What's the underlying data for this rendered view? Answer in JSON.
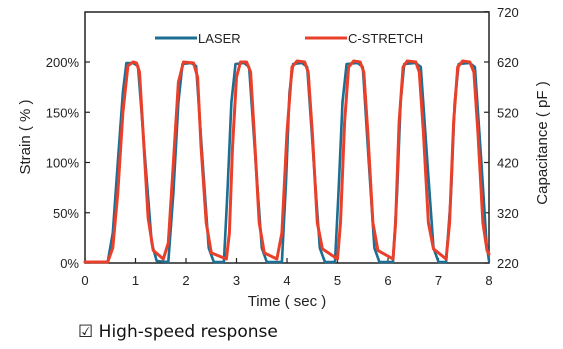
{
  "caption": {
    "checkbox": "☑",
    "text": "High-speed response"
  },
  "chart_data": {
    "type": "line",
    "title": "",
    "xlabel": "Time ( sec )",
    "ylabel": "Strain ( % )",
    "y2label": "Capacitance ( pF )",
    "xlim": [
      0,
      8
    ],
    "ylim": [
      0,
      200
    ],
    "y2lim": [
      220,
      620
    ],
    "xticks": [
      "0",
      "1",
      "2",
      "3",
      "4",
      "5",
      "6",
      "7",
      "8"
    ],
    "yticks": [
      "0%",
      "50%",
      "100%",
      "150%",
      "200%"
    ],
    "y2ticks": [
      "220",
      "320",
      "420",
      "520",
      "620",
      "720"
    ],
    "y2tick_values": [
      220,
      320,
      420,
      520,
      620,
      720
    ],
    "grid": false,
    "legend_position": "top-right",
    "series": [
      {
        "name": "LASER",
        "color": "#1c6e93",
        "axis": "left",
        "points": [
          [
            0,
            1
          ],
          [
            0.45,
            1
          ],
          [
            0.55,
            30
          ],
          [
            0.65,
            100
          ],
          [
            0.75,
            170
          ],
          [
            0.82,
            199
          ],
          [
            0.95,
            199
          ],
          [
            1.05,
            196
          ],
          [
            1.18,
            110
          ],
          [
            1.32,
            20
          ],
          [
            1.42,
            2
          ],
          [
            1.65,
            1
          ],
          [
            1.75,
            70
          ],
          [
            1.85,
            160
          ],
          [
            1.93,
            198
          ],
          [
            2.1,
            199
          ],
          [
            2.2,
            196
          ],
          [
            2.33,
            100
          ],
          [
            2.45,
            15
          ],
          [
            2.55,
            1
          ],
          [
            2.75,
            1
          ],
          [
            2.82,
            70
          ],
          [
            2.9,
            160
          ],
          [
            2.98,
            198
          ],
          [
            3.15,
            199
          ],
          [
            3.25,
            195
          ],
          [
            3.38,
            100
          ],
          [
            3.5,
            15
          ],
          [
            3.6,
            1
          ],
          [
            3.9,
            1
          ],
          [
            3.98,
            80
          ],
          [
            4.05,
            170
          ],
          [
            4.12,
            198
          ],
          [
            4.3,
            199
          ],
          [
            4.4,
            195
          ],
          [
            4.53,
            100
          ],
          [
            4.65,
            15
          ],
          [
            4.75,
            1
          ],
          [
            4.95,
            1
          ],
          [
            5.02,
            70
          ],
          [
            5.1,
            160
          ],
          [
            5.18,
            198
          ],
          [
            5.4,
            199
          ],
          [
            5.5,
            195
          ],
          [
            5.62,
            100
          ],
          [
            5.73,
            15
          ],
          [
            5.83,
            1
          ],
          [
            6.1,
            1
          ],
          [
            6.18,
            70
          ],
          [
            6.25,
            160
          ],
          [
            6.32,
            198
          ],
          [
            6.55,
            199
          ],
          [
            6.65,
            195
          ],
          [
            6.78,
            100
          ],
          [
            6.9,
            15
          ],
          [
            7.0,
            1
          ],
          [
            7.15,
            1
          ],
          [
            7.25,
            70
          ],
          [
            7.32,
            160
          ],
          [
            7.4,
            198
          ],
          [
            7.62,
            199
          ],
          [
            7.72,
            195
          ],
          [
            7.85,
            100
          ],
          [
            7.95,
            20
          ],
          [
            8.0,
            2
          ]
        ]
      },
      {
        "name": "C-STRETCH",
        "color": "#e8402a",
        "axis": "right",
        "points": [
          [
            0,
            222
          ],
          [
            0.45,
            222
          ],
          [
            0.55,
            250
          ],
          [
            0.65,
            360
          ],
          [
            0.75,
            520
          ],
          [
            0.85,
            612
          ],
          [
            0.95,
            620
          ],
          [
            1.02,
            618
          ],
          [
            1.08,
            600
          ],
          [
            1.15,
            480
          ],
          [
            1.25,
            310
          ],
          [
            1.35,
            245
          ],
          [
            1.55,
            228
          ],
          [
            1.65,
            260
          ],
          [
            1.75,
            420
          ],
          [
            1.85,
            580
          ],
          [
            1.95,
            620
          ],
          [
            2.15,
            618
          ],
          [
            2.23,
            590
          ],
          [
            2.3,
            450
          ],
          [
            2.4,
            300
          ],
          [
            2.5,
            240
          ],
          [
            2.8,
            228
          ],
          [
            2.86,
            280
          ],
          [
            2.92,
            450
          ],
          [
            3.0,
            590
          ],
          [
            3.08,
            620
          ],
          [
            3.2,
            620
          ],
          [
            3.28,
            600
          ],
          [
            3.35,
            480
          ],
          [
            3.45,
            300
          ],
          [
            3.55,
            240
          ],
          [
            3.8,
            228
          ],
          [
            3.9,
            280
          ],
          [
            4.0,
            480
          ],
          [
            4.1,
            610
          ],
          [
            4.2,
            622
          ],
          [
            4.35,
            620
          ],
          [
            4.42,
            600
          ],
          [
            4.5,
            480
          ],
          [
            4.6,
            300
          ],
          [
            4.7,
            248
          ],
          [
            5.0,
            228
          ],
          [
            5.06,
            300
          ],
          [
            5.14,
            500
          ],
          [
            5.22,
            610
          ],
          [
            5.32,
            622
          ],
          [
            5.45,
            620
          ],
          [
            5.52,
            600
          ],
          [
            5.6,
            480
          ],
          [
            5.7,
            300
          ],
          [
            5.8,
            245
          ],
          [
            6.1,
            228
          ],
          [
            6.15,
            300
          ],
          [
            6.22,
            500
          ],
          [
            6.3,
            610
          ],
          [
            6.38,
            622
          ],
          [
            6.55,
            620
          ],
          [
            6.62,
            600
          ],
          [
            6.7,
            480
          ],
          [
            6.8,
            300
          ],
          [
            6.9,
            248
          ],
          [
            7.15,
            228
          ],
          [
            7.22,
            300
          ],
          [
            7.3,
            500
          ],
          [
            7.38,
            610
          ],
          [
            7.48,
            622
          ],
          [
            7.62,
            620
          ],
          [
            7.7,
            600
          ],
          [
            7.78,
            480
          ],
          [
            7.88,
            300
          ],
          [
            7.96,
            245
          ],
          [
            8.0,
            238
          ]
        ]
      }
    ]
  }
}
